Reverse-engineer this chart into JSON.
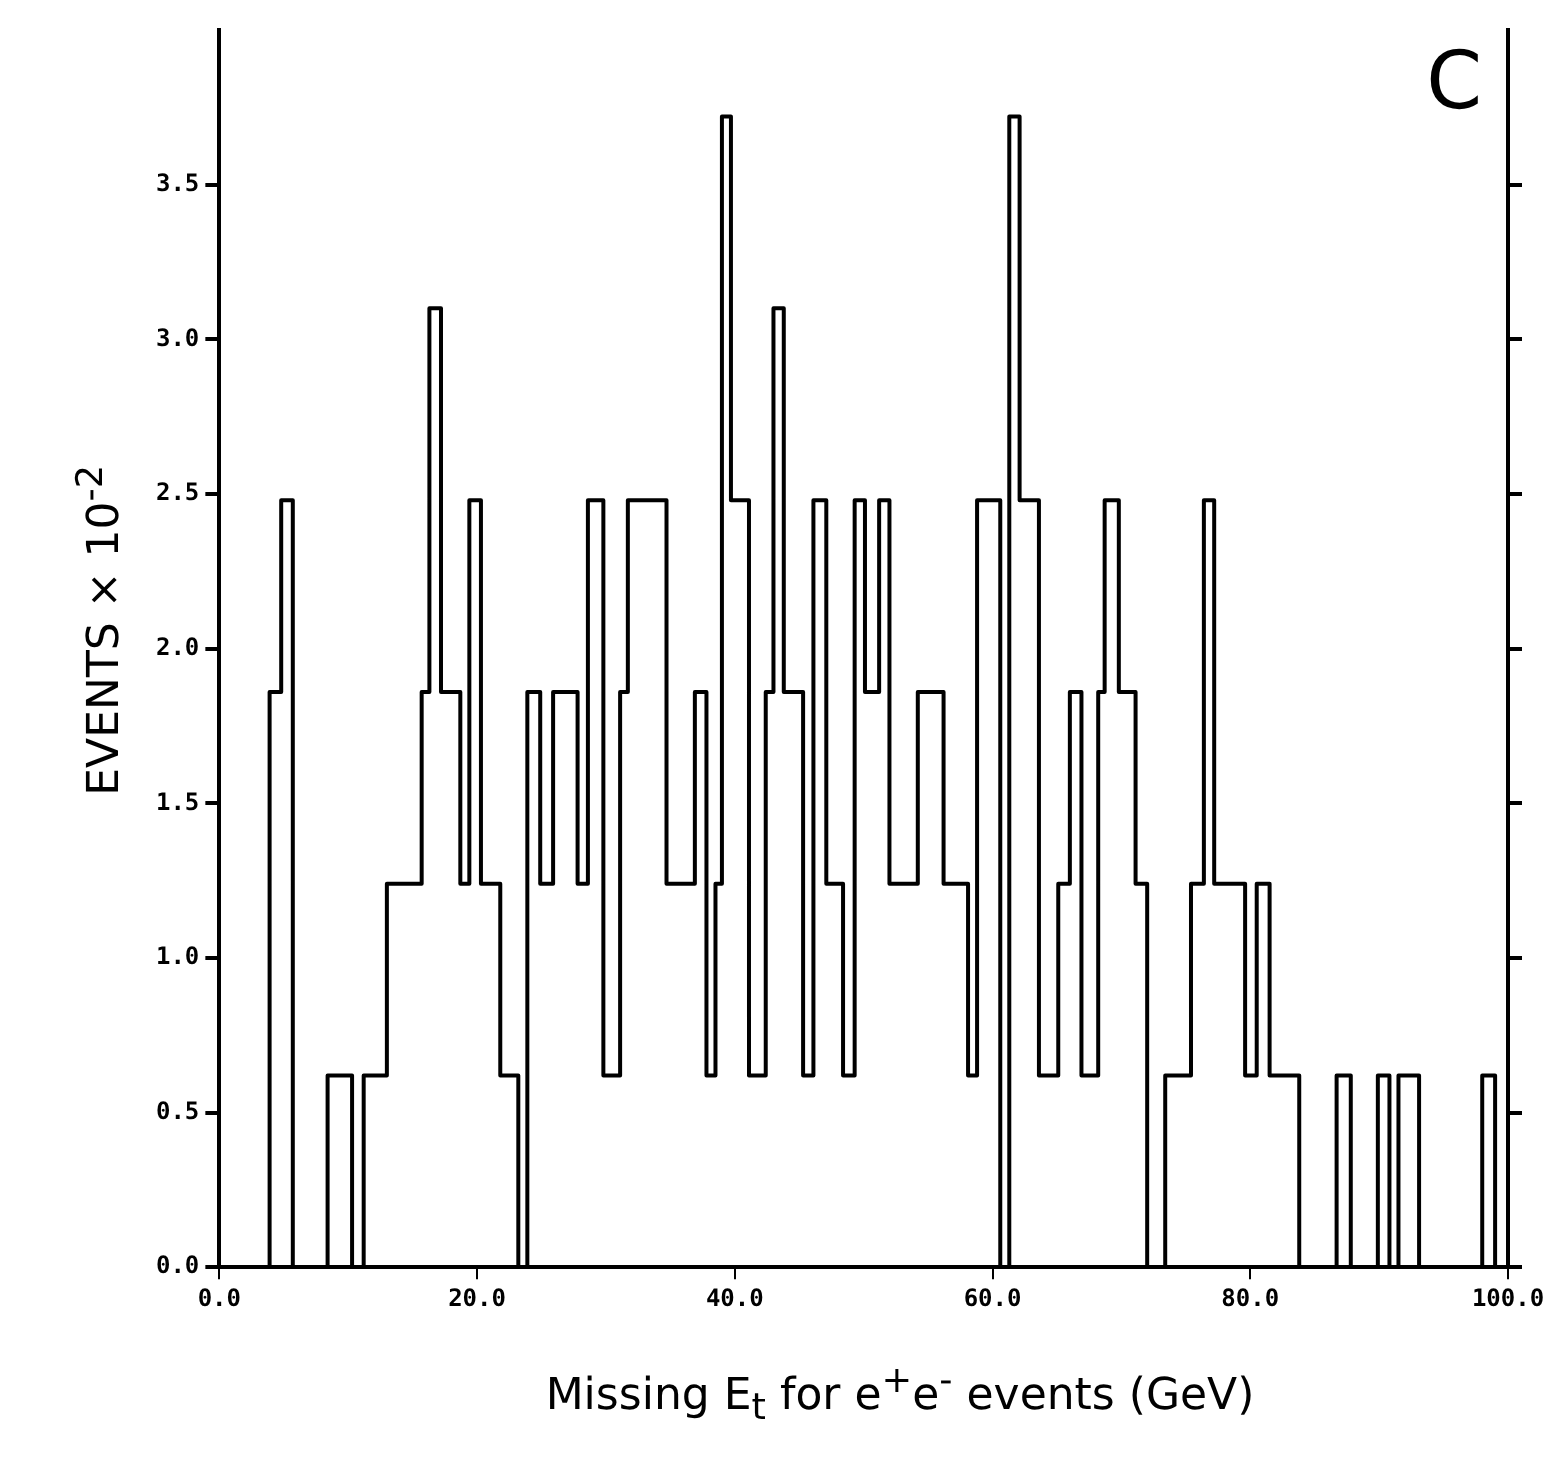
{
  "chart_data": {
    "type": "histogram",
    "xlabel": "Missing E$_{t}$ for e$^{+}$e$^{-}$ events (GeV)",
    "ylabel": "EVENTS × 10$^{-2}$",
    "annotations": [
      "C"
    ],
    "bins": [
      0,
      3.9,
      4.8,
      5.7,
      8.4,
      10.3,
      11.2,
      13.0,
      15.7,
      16.3,
      17.2,
      18.7,
      19.4,
      20.3,
      21.8,
      23.2,
      23.9,
      24.9,
      25.9,
      27.8,
      28.6,
      29.8,
      31.1,
      31.7,
      34.7,
      36.9,
      37.8,
      38.5,
      39.0,
      39.7,
      41.1,
      42.4,
      43.0,
      43.8,
      45.3,
      46.1,
      47.1,
      48.4,
      49.3,
      50.1,
      51.2,
      52.0,
      54.2,
      56.2,
      58.1,
      58.8,
      60.6,
      61.3,
      62.1,
      63.6,
      65.1,
      66.0,
      66.9,
      68.2,
      68.7,
      69.8,
      71.1,
      72.0,
      73.4,
      75.4,
      76.4,
      77.2,
      79.6,
      80.5,
      81.5,
      83.8,
      86.7,
      87.8,
      89.9,
      90.8,
      91.5,
      93.1,
      98.0,
      99.0,
      100
    ],
    "values": [
      0,
      1.86,
      2.48,
      0,
      0.62,
      0,
      0.62,
      1.24,
      1.86,
      3.1,
      1.86,
      1.24,
      2.48,
      1.24,
      0.62,
      0,
      1.86,
      1.24,
      1.86,
      1.24,
      2.48,
      0.62,
      1.86,
      2.48,
      1.24,
      1.86,
      0.62,
      1.24,
      3.72,
      2.48,
      0.62,
      1.86,
      3.1,
      1.86,
      0.62,
      2.48,
      1.24,
      0.62,
      2.48,
      1.86,
      2.48,
      1.24,
      1.86,
      1.24,
      0.62,
      2.48,
      0,
      3.72,
      2.48,
      0.62,
      1.24,
      1.86,
      0.62,
      1.86,
      2.48,
      1.86,
      1.24,
      0,
      0.62,
      1.24,
      2.48,
      1.24,
      0.62,
      1.24,
      0.62,
      0,
      0.62,
      0,
      0.62,
      0,
      0.62,
      0,
      0.62,
      0
    ],
    "color": "#000000",
    "xlim": [
      0,
      100
    ],
    "xticks": [
      {
        "value": 0,
        "label": "0.0"
      },
      {
        "value": 20,
        "label": "20.0"
      },
      {
        "value": 40,
        "label": "40.0"
      },
      {
        "value": 60,
        "label": "60.0"
      },
      {
        "value": 80,
        "label": "80.0"
      },
      {
        "value": 100,
        "label": "100.0"
      }
    ],
    "ylim": [
      0,
      4.0
    ],
    "yticks": [
      {
        "value": 0,
        "label": "0.0"
      },
      {
        "value": 0.5,
        "label": "0.5"
      },
      {
        "value": 1,
        "label": "1.0"
      },
      {
        "value": 1.5,
        "label": "1.5"
      },
      {
        "value": 2,
        "label": "2.0"
      },
      {
        "value": 2.5,
        "label": "2.5"
      },
      {
        "value": 3,
        "label": "3.0"
      },
      {
        "value": 3.5,
        "label": "3.5"
      }
    ]
  }
}
